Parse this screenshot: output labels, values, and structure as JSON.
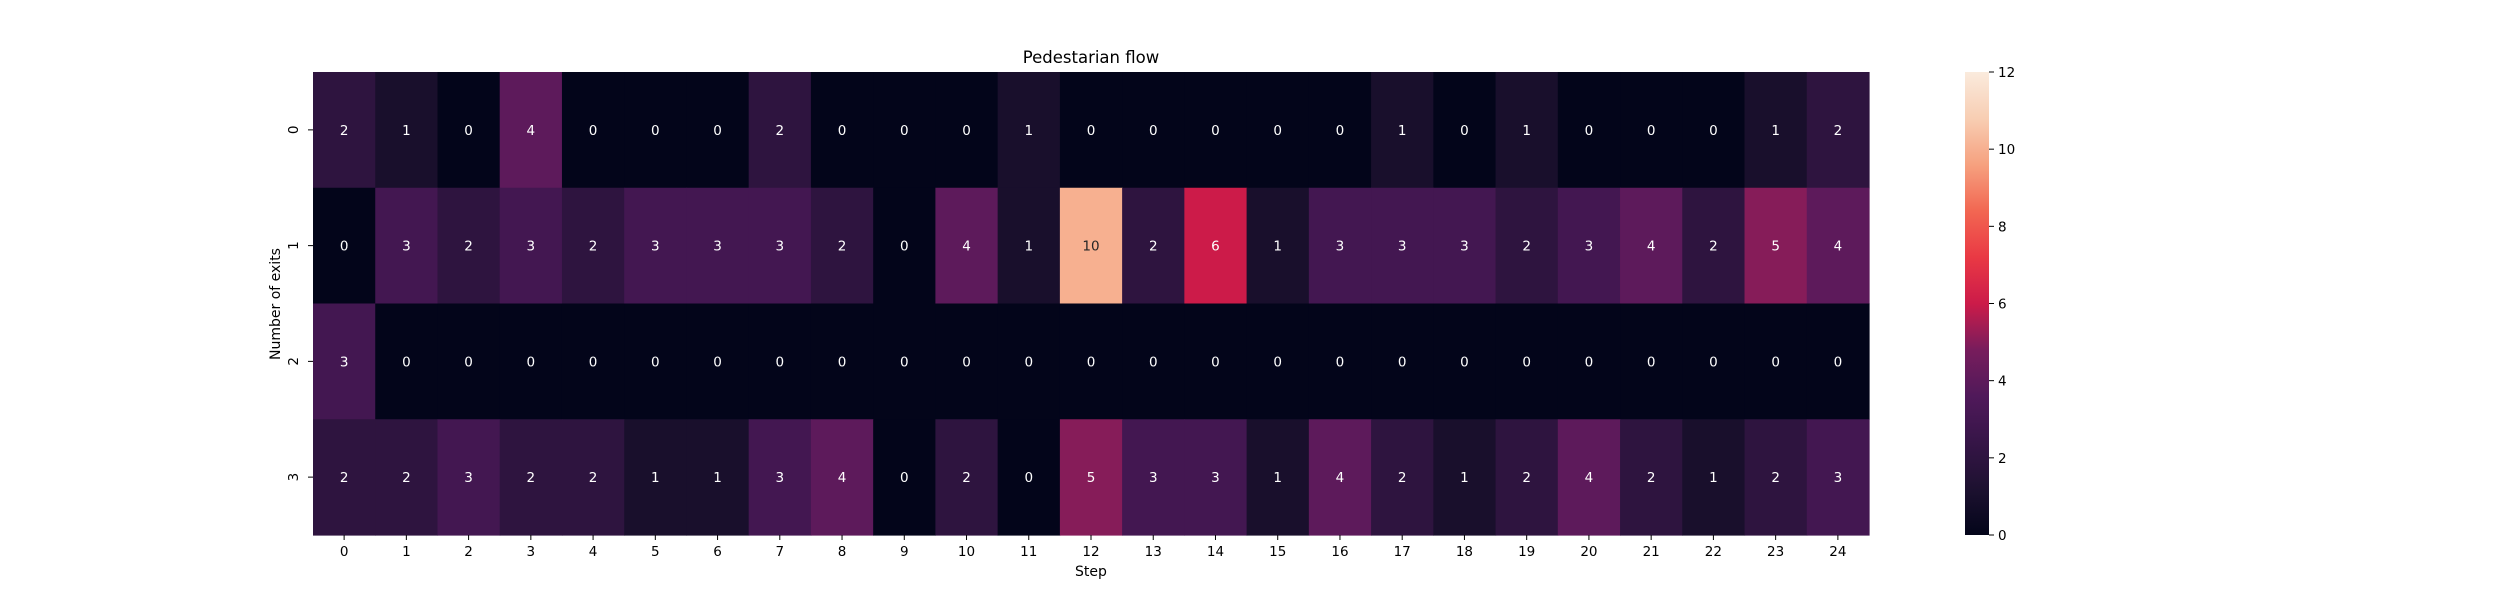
{
  "chart_data": {
    "type": "heatmap",
    "title": "Pedestarian flow",
    "xlabel": "Step",
    "ylabel": "Number of exits",
    "x": [
      0,
      1,
      2,
      3,
      4,
      5,
      6,
      7,
      8,
      9,
      10,
      11,
      12,
      13,
      14,
      15,
      16,
      17,
      18,
      19,
      20,
      21,
      22,
      23,
      24
    ],
    "y": [
      0,
      1,
      2,
      3
    ],
    "values": [
      [
        2,
        1,
        0,
        4,
        0,
        0,
        0,
        2,
        0,
        0,
        0,
        1,
        0,
        0,
        0,
        0,
        0,
        1,
        0,
        1,
        0,
        0,
        0,
        1,
        2
      ],
      [
        0,
        3,
        2,
        3,
        2,
        3,
        3,
        3,
        2,
        0,
        4,
        1,
        10,
        2,
        6,
        1,
        3,
        3,
        3,
        2,
        3,
        4,
        2,
        5,
        4
      ],
      [
        3,
        0,
        0,
        0,
        0,
        0,
        0,
        0,
        0,
        0,
        0,
        0,
        0,
        0,
        0,
        0,
        0,
        0,
        0,
        0,
        0,
        0,
        0,
        0,
        0
      ],
      [
        2,
        2,
        3,
        2,
        2,
        1,
        1,
        3,
        4,
        0,
        2,
        0,
        5,
        3,
        3,
        1,
        4,
        2,
        1,
        2,
        4,
        2,
        1,
        2,
        3
      ]
    ],
    "colorbar": {
      "min": 0,
      "max": 12,
      "ticks": [
        0,
        2,
        4,
        6,
        8,
        10,
        12
      ]
    },
    "colormap": "rocket",
    "annotations": true
  }
}
